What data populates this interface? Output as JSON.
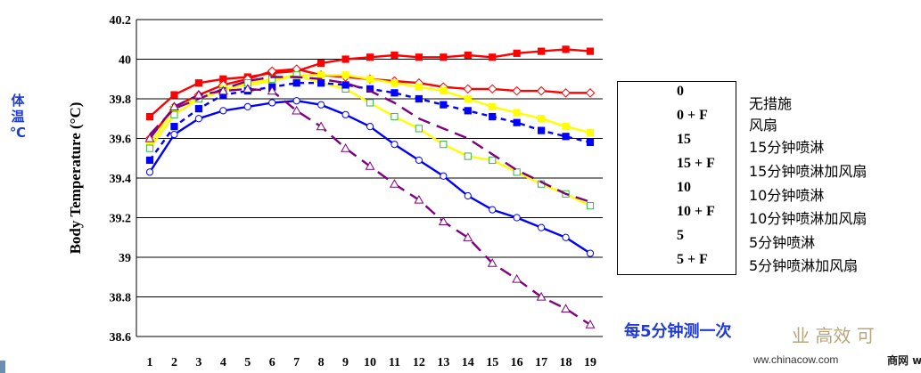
{
  "side_label": [
    "体",
    "温",
    "℃"
  ],
  "note": "每5分钟测一次",
  "watermark": "业 高效 可",
  "site": "ww.chinacow.com",
  "brand": "商网 w",
  "chart_data": {
    "type": "line",
    "title": "",
    "xlabel": "",
    "ylabel": "Body Temperature (°C)",
    "ylim": [
      38.6,
      40.2
    ],
    "yticks": [
      "38.6",
      "38.8",
      "39",
      "39.2",
      "39.4",
      "39.6",
      "39.8",
      "40",
      "40.2"
    ],
    "x": [
      1,
      2,
      3,
      4,
      5,
      6,
      7,
      8,
      9,
      10,
      11,
      12,
      13,
      14,
      15,
      16,
      17,
      18,
      19
    ],
    "grid": true,
    "legend_position": "right",
    "series": [
      {
        "name": "0",
        "cn": "无措施",
        "color": "#ff0000",
        "dash": "none",
        "marker": "square-filled",
        "values": [
          39.71,
          39.82,
          39.88,
          39.9,
          39.91,
          39.93,
          39.94,
          39.98,
          40.0,
          40.01,
          40.02,
          40.01,
          40.01,
          40.02,
          40.01,
          40.03,
          40.04,
          40.05,
          40.04
        ]
      },
      {
        "name": "0 + F",
        "cn": "风扇",
        "color": "#ff0000",
        "dash": "none",
        "marker": "diamond-open",
        "values": [
          39.6,
          39.76,
          39.82,
          39.87,
          39.9,
          39.94,
          39.95,
          39.92,
          39.91,
          39.9,
          39.89,
          39.88,
          39.86,
          39.85,
          39.85,
          39.84,
          39.84,
          39.83,
          39.83
        ]
      },
      {
        "name": "15",
        "cn": "15分钟喷淋",
        "color": "#ffff00",
        "dash": "none",
        "marker": "square-filled",
        "values": [
          39.57,
          39.75,
          39.8,
          39.85,
          39.87,
          39.89,
          39.92,
          39.92,
          39.92,
          39.9,
          39.88,
          39.86,
          39.84,
          39.8,
          39.76,
          39.73,
          39.7,
          39.66,
          39.63
        ]
      },
      {
        "name": "15 + F",
        "cn": "15分钟喷淋加风扇",
        "color": "#ffff00",
        "dash": "none",
        "marker": "square-open",
        "values": [
          39.55,
          39.72,
          39.8,
          39.84,
          39.88,
          39.9,
          39.92,
          39.88,
          39.85,
          39.78,
          39.71,
          39.65,
          39.57,
          39.51,
          39.49,
          39.43,
          39.37,
          39.32,
          39.26
        ]
      },
      {
        "name": "10",
        "cn": "10分钟喷淋",
        "color": "#0000ff",
        "dash": "6,5",
        "marker": "square-filled",
        "values": [
          39.49,
          39.66,
          39.75,
          39.82,
          39.84,
          39.86,
          39.88,
          39.88,
          39.87,
          39.85,
          39.83,
          39.8,
          39.77,
          39.74,
          39.71,
          39.68,
          39.64,
          39.61,
          39.58
        ]
      },
      {
        "name": "10 + F",
        "cn": "10分钟喷淋加风扇",
        "color": "#0000ff",
        "dash": "none",
        "marker": "circle-open",
        "values": [
          39.43,
          39.62,
          39.7,
          39.74,
          39.76,
          39.78,
          39.79,
          39.77,
          39.72,
          39.66,
          39.57,
          39.49,
          39.41,
          39.31,
          39.24,
          39.2,
          39.15,
          39.1,
          39.02
        ]
      },
      {
        "name": "5",
        "cn": "5分钟喷淋",
        "color": "#800080",
        "dash": "14,8",
        "marker": "none",
        "values": [
          39.62,
          39.75,
          39.8,
          39.85,
          39.89,
          39.91,
          39.91,
          39.9,
          39.88,
          39.84,
          39.78,
          39.7,
          39.65,
          39.6,
          39.52,
          39.44,
          39.38,
          39.32,
          39.28
        ]
      },
      {
        "name": "5 + F",
        "cn": "5分钟喷淋加风扇",
        "color": "#800080",
        "dash": "14,8",
        "marker": "triangle-open",
        "values": [
          39.6,
          39.76,
          39.82,
          39.84,
          39.85,
          39.84,
          39.74,
          39.66,
          39.55,
          39.46,
          39.37,
          39.29,
          39.18,
          39.1,
          38.97,
          38.89,
          38.8,
          38.74,
          38.66
        ]
      }
    ]
  }
}
